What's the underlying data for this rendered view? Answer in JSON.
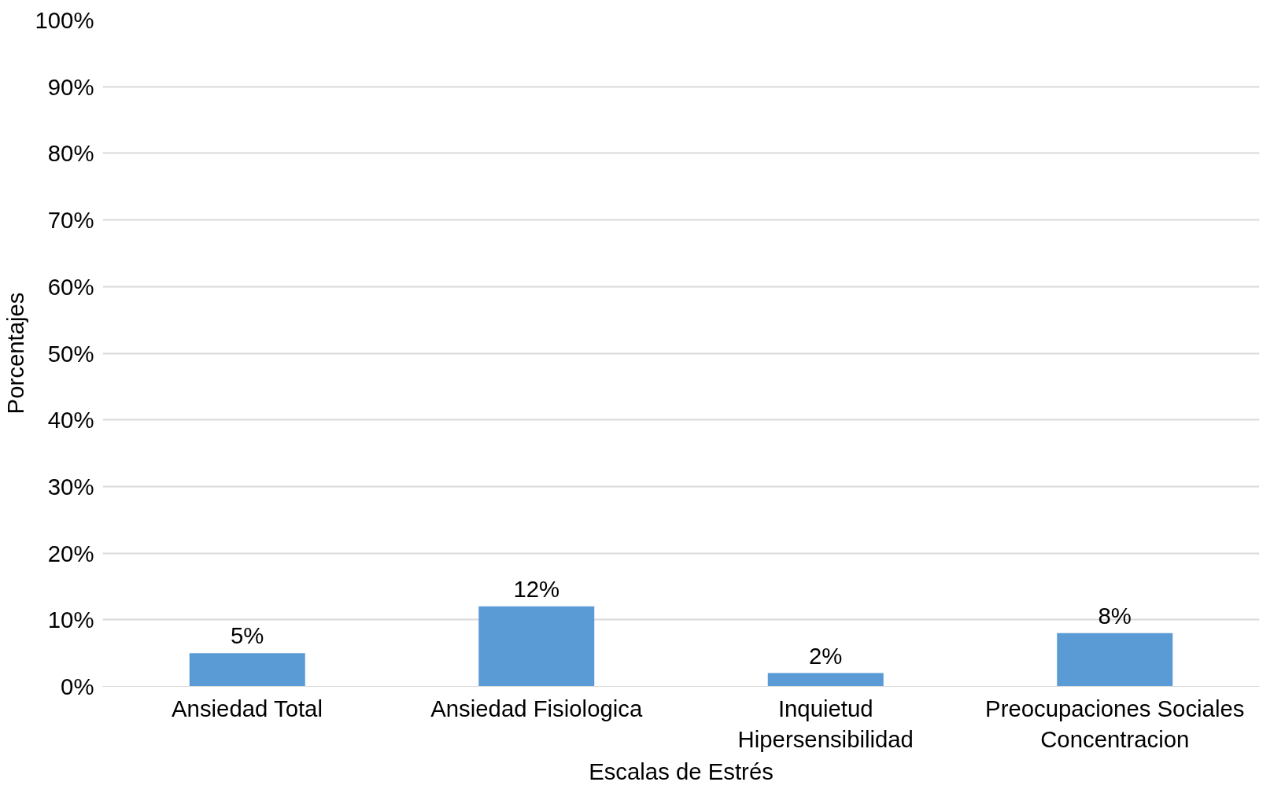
{
  "chart_data": {
    "type": "bar",
    "xlabel": "Escalas de Estrés",
    "ylabel": "Porcentajes",
    "categories": [
      "Ansiedad Total",
      "Ansiedad Fisiologica",
      "Inquietud\nHipersensibilidad",
      "Preocupaciones Sociales\nConcentracion"
    ],
    "values": [
      5,
      12,
      2,
      8
    ],
    "value_labels": [
      "5%",
      "12%",
      "2%",
      "8%"
    ],
    "color": "#5b9bd5",
    "ylim": [
      0,
      100
    ],
    "yticks": [
      {
        "value": 0,
        "label": "0%"
      },
      {
        "value": 10,
        "label": "10%"
      },
      {
        "value": 20,
        "label": "20%"
      },
      {
        "value": 30,
        "label": "30%"
      },
      {
        "value": 40,
        "label": "40%"
      },
      {
        "value": 50,
        "label": "50%"
      },
      {
        "value": 60,
        "label": "60%"
      },
      {
        "value": 70,
        "label": "70%"
      },
      {
        "value": 80,
        "label": "80%"
      },
      {
        "value": 90,
        "label": "90%"
      },
      {
        "value": 100,
        "label": "100%"
      }
    ],
    "grid": "y"
  }
}
